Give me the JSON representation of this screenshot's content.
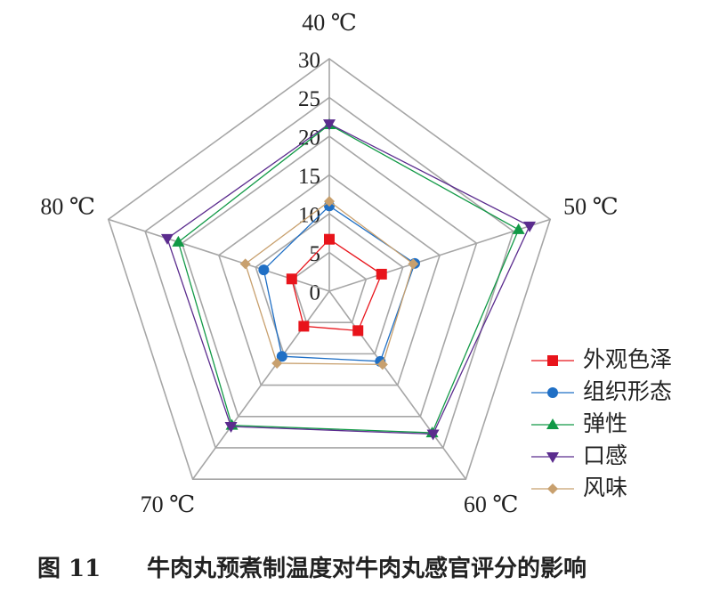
{
  "chart_data": {
    "type": "radar",
    "figure_label": "图 11",
    "title": "牛肉丸预煮制温度对牛肉丸感官评分的影响",
    "categories": [
      "40 ℃",
      "50 ℃",
      "60 ℃",
      "70 ℃",
      "80 ℃"
    ],
    "rlim": [
      0,
      30
    ],
    "rticks": [
      0,
      5,
      10,
      15,
      20,
      25,
      30
    ],
    "series": [
      {
        "name": "外观色泽",
        "color": "#e8141b",
        "values": [
          6.7,
          7.1,
          6.3,
          5.6,
          5.1
        ]
      },
      {
        "name": "组织形态",
        "color": "#1f6fc5",
        "values": [
          11.0,
          11.6,
          11.2,
          10.4,
          8.9
        ]
      },
      {
        "name": "弹性",
        "color": "#119946",
        "values": [
          21.5,
          25.7,
          22.6,
          21.4,
          20.5
        ]
      },
      {
        "name": "口感",
        "color": "#5b2c8e",
        "values": [
          21.6,
          27.2,
          22.8,
          21.6,
          22.0
        ]
      },
      {
        "name": "风味",
        "color": "#c8a06e",
        "values": [
          11.6,
          11.4,
          11.7,
          11.5,
          11.4
        ]
      }
    ]
  }
}
